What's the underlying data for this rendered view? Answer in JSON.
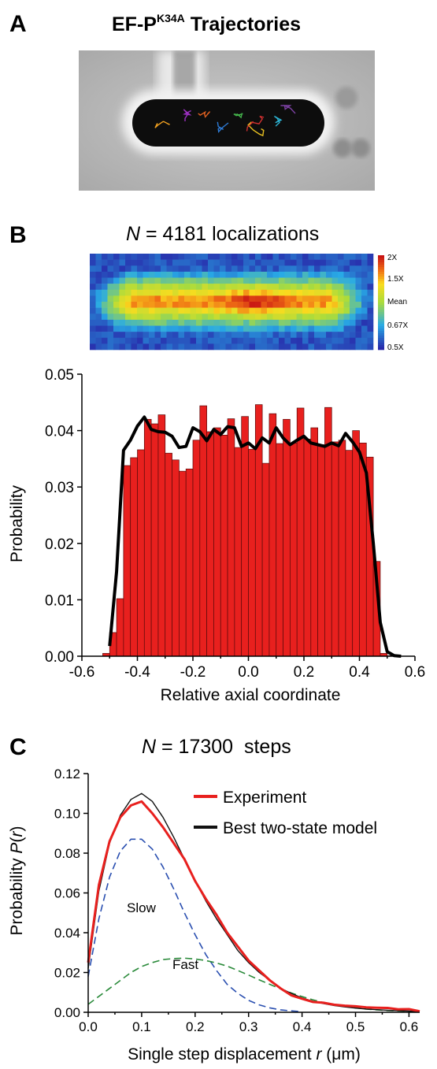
{
  "panels": {
    "a": {
      "letter": "A",
      "title_main": "EF-P",
      "title_sup": "K34A",
      "title_rest": " Trajectories",
      "trajectory_colors": [
        "#f0a020",
        "#9b30c0",
        "#e06020",
        "#2e7bd6",
        "#43b14a",
        "#e8c020",
        "#d03030",
        "#2cb0d0",
        "#7a40a0"
      ]
    },
    "b": {
      "letter": "B",
      "title_italic": "N",
      "title_rest": " = 4181 localizations",
      "colorbar_labels": [
        "2X",
        "1.5X",
        "Mean",
        "0.67X",
        "0.5X"
      ]
    },
    "c": {
      "letter": "C",
      "title_italic": "N",
      "title_rest": " = 17300  steps",
      "labels": {
        "slow": "Slow",
        "fast": "Fast"
      }
    }
  },
  "chart_data": [
    {
      "type": "bar",
      "title": "",
      "xlabel": "Relative axial coordinate",
      "ylabel": "Probability",
      "xlim": [
        -0.6,
        0.6
      ],
      "ylim": [
        0,
        0.05
      ],
      "xticks": [
        "-0.6",
        "-0.4",
        "-0.2",
        "0.0",
        "0.2",
        "0.4",
        "0.6"
      ],
      "yticks": [
        "0.00",
        "0.01",
        "0.02",
        "0.03",
        "0.04",
        "0.05"
      ],
      "bin_width": 0.025,
      "bin_centers": [
        -0.5125,
        -0.4875,
        -0.4625,
        -0.4375,
        -0.4125,
        -0.3875,
        -0.3625,
        -0.3375,
        -0.3125,
        -0.2875,
        -0.2625,
        -0.2375,
        -0.2125,
        -0.1875,
        -0.1625,
        -0.1375,
        -0.1125,
        -0.0875,
        -0.0625,
        -0.0375,
        -0.0125,
        0.0125,
        0.0375,
        0.0625,
        0.0875,
        0.1125,
        0.1375,
        0.1625,
        0.1875,
        0.2125,
        0.2375,
        0.2625,
        0.2875,
        0.3125,
        0.3375,
        0.3625,
        0.3875,
        0.4125,
        0.4375,
        0.4625,
        0.4875,
        0.5125
      ],
      "values": [
        0.0005,
        0.0042,
        0.0102,
        0.0338,
        0.0352,
        0.0366,
        0.042,
        0.0412,
        0.0428,
        0.036,
        0.0348,
        0.0328,
        0.0332,
        0.0383,
        0.0444,
        0.0398,
        0.0405,
        0.0392,
        0.0421,
        0.037,
        0.0425,
        0.0367,
        0.0446,
        0.0342,
        0.043,
        0.0377,
        0.042,
        0.0378,
        0.044,
        0.0385,
        0.0405,
        0.0375,
        0.0441,
        0.038,
        0.0383,
        0.0365,
        0.04,
        0.0378,
        0.0353,
        0.0168,
        0.0005,
        0.0001
      ],
      "bar_color": "#e8201e",
      "series": [
        {
          "name": "",
          "type": "line",
          "color": "#000000",
          "x": [
            -0.5,
            -0.475,
            -0.45,
            -0.425,
            -0.4,
            -0.375,
            -0.35,
            -0.325,
            -0.3,
            -0.275,
            -0.25,
            -0.225,
            -0.2,
            -0.175,
            -0.15,
            -0.125,
            -0.1,
            -0.075,
            -0.05,
            -0.025,
            0.0,
            0.025,
            0.05,
            0.075,
            0.1,
            0.125,
            0.15,
            0.175,
            0.2,
            0.225,
            0.25,
            0.275,
            0.3,
            0.325,
            0.35,
            0.375,
            0.4,
            0.425,
            0.45,
            0.475,
            0.5,
            0.525,
            0.55
          ],
          "y": [
            0.0018,
            0.015,
            0.0365,
            0.0383,
            0.0408,
            0.0424,
            0.0402,
            0.0398,
            0.0397,
            0.039,
            0.037,
            0.0372,
            0.0405,
            0.0398,
            0.0382,
            0.0402,
            0.0393,
            0.0407,
            0.0405,
            0.0372,
            0.0378,
            0.0368,
            0.0387,
            0.0378,
            0.0405,
            0.0387,
            0.0375,
            0.0383,
            0.039,
            0.0378,
            0.0375,
            0.0372,
            0.0378,
            0.0373,
            0.0395,
            0.038,
            0.0362,
            0.0325,
            0.02,
            0.006,
            0.0008,
            0.0001,
            0.0
          ]
        }
      ]
    },
    {
      "type": "line",
      "title": "",
      "xlabel": "Single step displacement r (μm)",
      "ylabel": "Probability P(r)",
      "xlim": [
        0,
        0.62
      ],
      "ylim": [
        0,
        0.12
      ],
      "xticks": [
        "0.0",
        "0.1",
        "0.2",
        "0.3",
        "0.4",
        "0.5",
        "0.6"
      ],
      "yticks": [
        "0.00",
        "0.02",
        "0.04",
        "0.06",
        "0.08",
        "0.10",
        "0.12"
      ],
      "legend": "top-right",
      "series": [
        {
          "name": "Experiment",
          "color": "#e8201e",
          "style": "solid",
          "width": 3,
          "x": [
            0.0,
            0.02,
            0.04,
            0.06,
            0.08,
            0.1,
            0.12,
            0.14,
            0.16,
            0.18,
            0.2,
            0.22,
            0.24,
            0.26,
            0.28,
            0.3,
            0.32,
            0.34,
            0.36,
            0.38,
            0.4,
            0.42,
            0.44,
            0.46,
            0.48,
            0.5,
            0.52,
            0.54,
            0.56,
            0.58,
            0.6,
            0.62
          ],
          "y": [
            0.025,
            0.064,
            0.086,
            0.098,
            0.104,
            0.106,
            0.1,
            0.093,
            0.085,
            0.077,
            0.066,
            0.057,
            0.049,
            0.04,
            0.033,
            0.026,
            0.021,
            0.016,
            0.012,
            0.0085,
            0.0068,
            0.0052,
            0.0048,
            0.0038,
            0.0033,
            0.003,
            0.0025,
            0.0023,
            0.0022,
            0.0015,
            0.0016,
            0.0005
          ]
        },
        {
          "name": "Best two-state model",
          "color": "#111111",
          "style": "solid",
          "width": 1.4,
          "x": [
            0.0,
            0.02,
            0.04,
            0.06,
            0.08,
            0.1,
            0.12,
            0.14,
            0.16,
            0.18,
            0.2,
            0.22,
            0.24,
            0.26,
            0.28,
            0.3,
            0.32,
            0.34,
            0.36,
            0.38,
            0.4,
            0.42,
            0.44,
            0.46,
            0.48,
            0.5,
            0.52,
            0.54,
            0.56,
            0.58,
            0.6,
            0.62
          ],
          "y": [
            0.022,
            0.061,
            0.085,
            0.099,
            0.107,
            0.11,
            0.106,
            0.098,
            0.088,
            0.077,
            0.066,
            0.056,
            0.047,
            0.039,
            0.031,
            0.025,
            0.02,
            0.016,
            0.012,
            0.0095,
            0.0072,
            0.0056,
            0.0044,
            0.0034,
            0.0027,
            0.0021,
            0.0016,
            0.0013,
            0.001,
            0.0008,
            0.0006,
            0.0005
          ]
        },
        {
          "name": "Slow",
          "color": "#2a4fb0",
          "style": "dashed",
          "width": 1.6,
          "x": [
            0.0,
            0.02,
            0.04,
            0.06,
            0.08,
            0.1,
            0.12,
            0.14,
            0.16,
            0.18,
            0.2,
            0.22,
            0.24,
            0.26,
            0.28,
            0.3,
            0.32,
            0.34,
            0.36,
            0.38,
            0.4
          ],
          "y": [
            0.018,
            0.047,
            0.068,
            0.081,
            0.087,
            0.087,
            0.082,
            0.073,
            0.062,
            0.05,
            0.039,
            0.029,
            0.021,
            0.014,
            0.0095,
            0.006,
            0.0037,
            0.0022,
            0.0012,
            0.0007,
            0.0003
          ]
        },
        {
          "name": "Fast",
          "color": "#2a8a3a",
          "style": "dashed",
          "width": 1.6,
          "x": [
            0.0,
            0.02,
            0.04,
            0.06,
            0.08,
            0.1,
            0.12,
            0.14,
            0.16,
            0.18,
            0.2,
            0.22,
            0.24,
            0.26,
            0.28,
            0.3,
            0.32,
            0.34,
            0.36,
            0.38,
            0.4,
            0.42,
            0.44,
            0.46,
            0.48,
            0.5,
            0.52,
            0.54,
            0.56,
            0.58,
            0.6,
            0.62
          ],
          "y": [
            0.004,
            0.008,
            0.012,
            0.016,
            0.02,
            0.023,
            0.025,
            0.0265,
            0.027,
            0.0272,
            0.0268,
            0.026,
            0.0248,
            0.0232,
            0.021,
            0.0187,
            0.0163,
            0.014,
            0.0118,
            0.0097,
            0.0079,
            0.0063,
            0.0049,
            0.0038,
            0.0029,
            0.0022,
            0.0016,
            0.0012,
            0.0009,
            0.0007,
            0.0005,
            0.0004
          ]
        }
      ]
    }
  ]
}
